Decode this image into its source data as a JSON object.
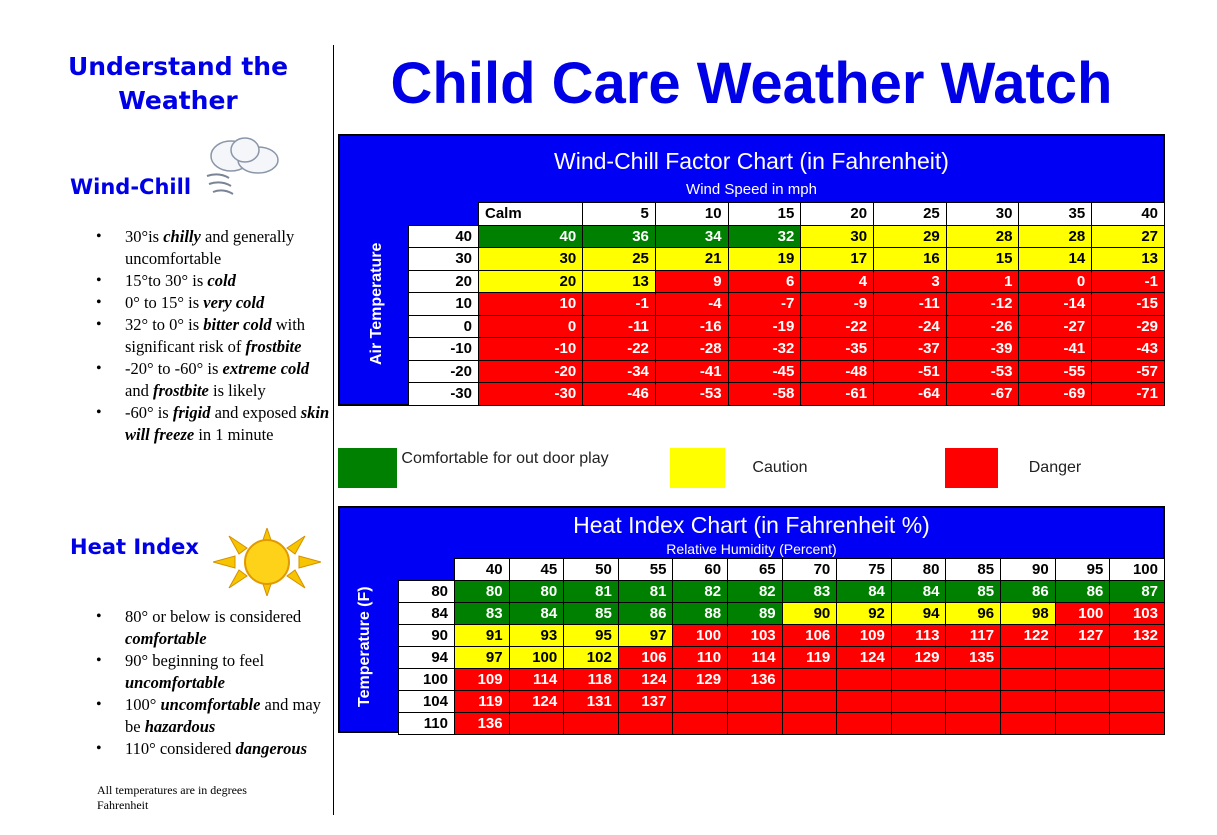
{
  "sidebar": {
    "title": "Understand the Weather",
    "wind_heading": "Wind-Chill",
    "wind_icon": "cloud-wind-icon",
    "wind_bullets": [
      "30°is <i><b>chilly</b></i> and generally uncomfortable",
      "15°to 30° is <i><b>cold</b></i>",
      "0° to 15° is <i><b>very cold</b></i>",
      "32° to 0° is <i><b>bitter cold</b></i> with significant risk of <i><b>frostbite</b></i>",
      "-20° to -60° is <i><b>extreme cold</b></i> and <i><b>frostbite</b></i> is likely",
      "-60° is <i><b>frigid</b></i> and exposed <i><b>skin will freeze</b></i> in 1 minute"
    ],
    "heat_heading": "Heat Index",
    "heat_icon": "sun-icon",
    "heat_bullets": [
      "80° or below is considered <i><b>comfortable</b></i>",
      "90° beginning to feel <i><b>uncomfortable</b></i>",
      "100° <i><b>uncomfortable</b></i> and may be <i><b>hazardous</b></i>",
      "110° considered <i><b>dangerous</b></i>"
    ],
    "note": "All temperatures are in degrees Fahrenheit"
  },
  "main_title": "Child Care Weather Watch",
  "colors": {
    "blue": "#0000f5",
    "g": "#008000",
    "y": "#ffff00",
    "r": "#ff0000"
  },
  "wind_chill": {
    "title": "Wind-Chill Factor Chart (in Fahrenheit)",
    "subtitle": "Wind Speed in mph",
    "row_label": "Air Temperature",
    "columns": [
      "Calm",
      "5",
      "10",
      "15",
      "20",
      "25",
      "30",
      "35",
      "40"
    ],
    "rows": [
      {
        "temp": "40",
        "values": [
          "40",
          "36",
          "34",
          "32",
          "30",
          "29",
          "28",
          "28",
          "27"
        ],
        "levels": "ggggyyyyy"
      },
      {
        "temp": "30",
        "values": [
          "30",
          "25",
          "21",
          "19",
          "17",
          "16",
          "15",
          "14",
          "13"
        ],
        "levels": "yyyyyyyyy"
      },
      {
        "temp": "20",
        "values": [
          "20",
          "13",
          "9",
          "6",
          "4",
          "3",
          "1",
          "0",
          "-1"
        ],
        "levels": "yyrrrrrrr"
      },
      {
        "temp": "10",
        "values": [
          "10",
          "-1",
          "-4",
          "-7",
          "-9",
          "-11",
          "-12",
          "-14",
          "-15"
        ],
        "levels": "rrrrrrrrr"
      },
      {
        "temp": "0",
        "values": [
          "0",
          "-11",
          "-16",
          "-19",
          "-22",
          "-24",
          "-26",
          "-27",
          "-29"
        ],
        "levels": "rrrrrrrrr"
      },
      {
        "temp": "-10",
        "values": [
          "-10",
          "-22",
          "-28",
          "-32",
          "-35",
          "-37",
          "-39",
          "-41",
          "-43"
        ],
        "levels": "rrrrrrrrr"
      },
      {
        "temp": "-20",
        "values": [
          "-20",
          "-34",
          "-41",
          "-45",
          "-48",
          "-51",
          "-53",
          "-55",
          "-57"
        ],
        "levels": "rrrrrrrrr"
      },
      {
        "temp": "-30",
        "values": [
          "-30",
          "-46",
          "-53",
          "-58",
          "-61",
          "-64",
          "-67",
          "-69",
          "-71"
        ],
        "levels": "rrrrrrrrr"
      }
    ]
  },
  "legend": [
    {
      "label": "Comfortable for out door play",
      "level": "g"
    },
    {
      "label": "Caution",
      "level": "y"
    },
    {
      "label": "Danger",
      "level": "r"
    }
  ],
  "heat_index": {
    "title": "Heat Index Chart (in Fahrenheit %)",
    "subtitle": "Relative Humidity (Percent)",
    "row_label": "Temperature (F)",
    "columns": [
      "40",
      "45",
      "50",
      "55",
      "60",
      "65",
      "70",
      "75",
      "80",
      "85",
      "90",
      "95",
      "100"
    ],
    "rows": [
      {
        "temp": "80",
        "values": [
          "80",
          "80",
          "81",
          "81",
          "82",
          "82",
          "83",
          "84",
          "84",
          "85",
          "86",
          "86",
          "87"
        ],
        "levels": "ggggggggggggg"
      },
      {
        "temp": "84",
        "values": [
          "83",
          "84",
          "85",
          "86",
          "88",
          "89",
          "90",
          "92",
          "94",
          "96",
          "98",
          "100",
          "103"
        ],
        "levels": "ggggggyyyyyrr"
      },
      {
        "temp": "90",
        "values": [
          "91",
          "93",
          "95",
          "97",
          "100",
          "103",
          "106",
          "109",
          "113",
          "117",
          "122",
          "127",
          "132"
        ],
        "levels": "yyyyrrrrrrrrr"
      },
      {
        "temp": "94",
        "values": [
          "97",
          "100",
          "102",
          "106",
          "110",
          "114",
          "119",
          "124",
          "129",
          "135",
          "",
          "",
          ""
        ],
        "levels": "yyyrrrrrrrrrr"
      },
      {
        "temp": "100",
        "values": [
          "109",
          "114",
          "118",
          "124",
          "129",
          "136",
          "",
          "",
          "",
          "",
          "",
          "",
          ""
        ],
        "levels": "rrrrrrrrrrrrr"
      },
      {
        "temp": "104",
        "values": [
          "119",
          "124",
          "131",
          "137",
          "",
          "",
          "",
          "",
          "",
          "",
          "",
          "",
          ""
        ],
        "levels": "rrrrrrrrrrrrr"
      },
      {
        "temp": "110",
        "values": [
          "136",
          "",
          "",
          "",
          "",
          "",
          "",
          "",
          "",
          "",
          "",
          "",
          ""
        ],
        "levels": "rrrrrrrrrrrrr"
      }
    ]
  }
}
